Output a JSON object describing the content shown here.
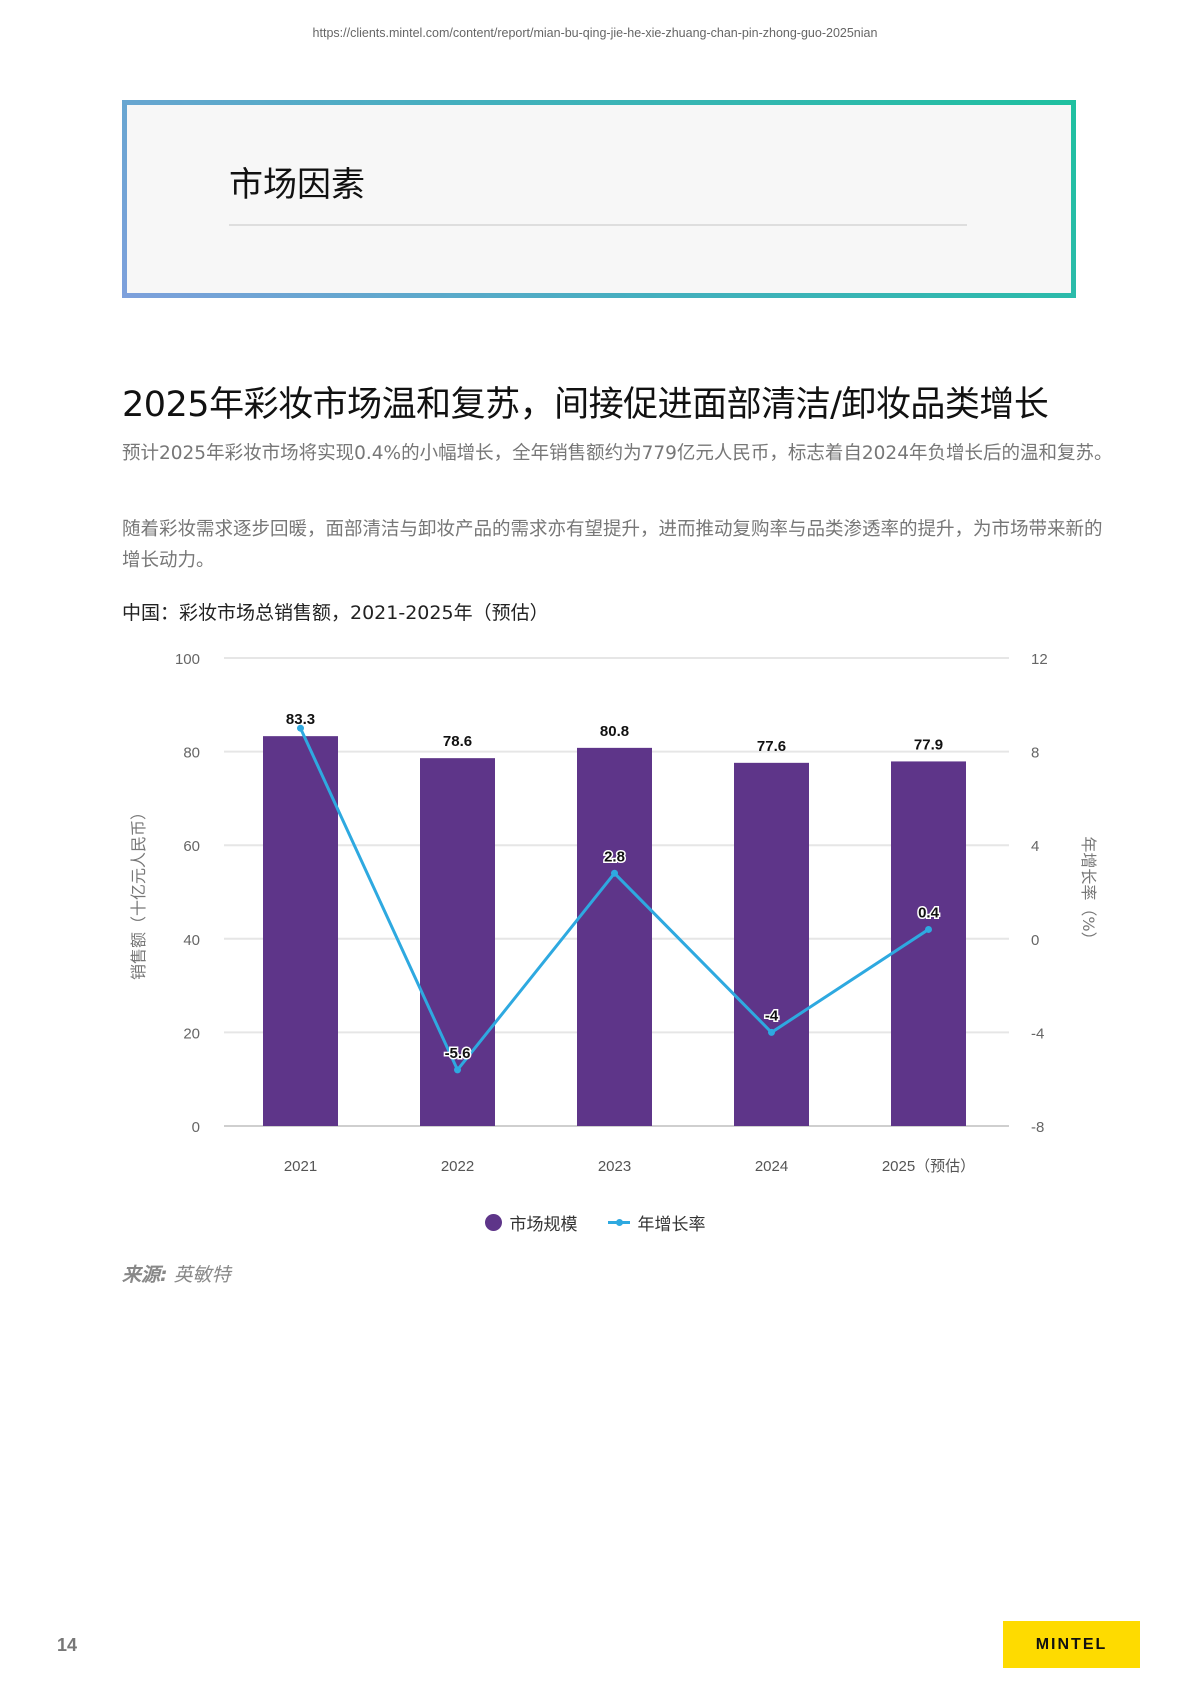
{
  "header": {
    "url": "https://clients.mintel.com/content/report/mian-bu-qing-jie-he-xie-zhuang-chan-pin-zhong-guo-2025nian"
  },
  "section": {
    "title": "市场因素"
  },
  "article": {
    "headline": "2025年彩妆市场温和复苏，间接促进面部清洁/卸妆品类增长",
    "paragraphs": [
      "预计2025年彩妆市场将实现0.4%的小幅增长，全年销售额约为779亿元人民币，标志着自2024年负增长后的温和复苏。",
      "随着彩妆需求逐步回暖，面部清洁与卸妆产品的需求亦有望提升，进而推动复购率与品类渗透率的提升，为市场带来新的增长动力。"
    ]
  },
  "chart_data": {
    "type": "bar+line",
    "title": "中国：彩妆市场总销售额，2021-2025年（预估）",
    "categories": [
      "2021",
      "2022",
      "2023",
      "2024",
      "2025（预估）"
    ],
    "series": [
      {
        "name": "市场规模",
        "type": "bar",
        "axis": "left",
        "color": "#5e3589",
        "values": [
          83.3,
          78.6,
          80.8,
          77.6,
          77.9
        ]
      },
      {
        "name": "年增长率",
        "type": "line",
        "axis": "right",
        "color": "#2ea9e0",
        "values": [
          9.0,
          -5.6,
          2.8,
          -4,
          0.4
        ],
        "labels": [
          "",
          "-5.6",
          "2.8",
          "-4",
          "0.4"
        ]
      }
    ],
    "ylabel": "销售额（十亿元人民币）",
    "ylabel_right": "年增长率（%）",
    "ylim": [
      0,
      100
    ],
    "yticks": [
      0,
      20,
      40,
      60,
      80,
      100
    ],
    "ylim_right": [
      -8,
      12
    ],
    "yticks_right": [
      -8,
      -4,
      0,
      4,
      8,
      12
    ],
    "grid": true,
    "legend_position": "bottom"
  },
  "legend": {
    "bar_label": "市场规模",
    "line_label": "年增长率"
  },
  "source": {
    "prefix": "来源:",
    "name": "英敏特"
  },
  "footer": {
    "page_number": "14",
    "brand": "MINTEL"
  },
  "colors": {
    "bar": "#5e3589",
    "line": "#2ea9e0",
    "logo_bg": "#fedb00"
  }
}
